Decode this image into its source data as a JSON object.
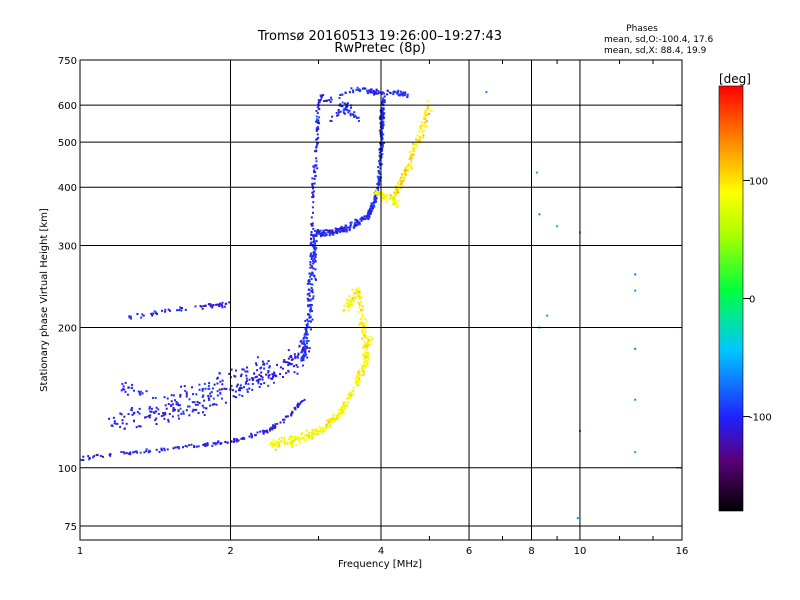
{
  "chart_data": {
    "type": "scatter",
    "title": "Tromsø 20160513 19:26:00–19:27:43",
    "subtitle": "RwPretec (8p)",
    "xlabel": "Frequency [MHz]",
    "ylabel": "Stationary phase Virtual Height [km]",
    "x_scale": "log",
    "y_scale": "log",
    "xlim": [
      1,
      16
    ],
    "ylim": [
      70,
      750
    ],
    "x_ticks": [
      "1",
      "2",
      "4",
      "6",
      "8",
      "10",
      "16"
    ],
    "y_ticks": [
      "75",
      "100",
      "200",
      "300",
      "400",
      "500",
      "600",
      "750"
    ],
    "grid": true,
    "phases": {
      "title": "Phases",
      "o_line": "mean, sd,O:-100.4, 17.6",
      "x_line": "mean, sd,X:  88.4, 19.9"
    },
    "colorbar": {
      "label": "[deg]",
      "range": [
        -180,
        180
      ],
      "ticks": [
        "100",
        "0",
        "-100"
      ],
      "tick_values": [
        100,
        0,
        -100
      ]
    },
    "traces": [
      {
        "kind": "o-f1-bottom",
        "points": [
          [
            1.0,
            105
          ],
          [
            1.1,
            106
          ],
          [
            1.3,
            108
          ],
          [
            1.5,
            110
          ],
          [
            1.8,
            112
          ],
          [
            2.0,
            114
          ],
          [
            2.2,
            117
          ],
          [
            2.4,
            121
          ],
          [
            2.6,
            128
          ],
          [
            2.8,
            140
          ]
        ],
        "spread": 0.015,
        "phase": -105,
        "count": 170
      },
      {
        "kind": "o-f1-upper",
        "points": [
          [
            1.15,
            125
          ],
          [
            1.4,
            130
          ],
          [
            1.7,
            135
          ],
          [
            2.0,
            145
          ],
          [
            2.3,
            155
          ],
          [
            2.6,
            165
          ],
          [
            2.85,
            180
          ]
        ],
        "spread": 0.08,
        "phase": -105,
        "count": 260
      },
      {
        "kind": "o-f1-mid",
        "points": [
          [
            1.2,
            150
          ],
          [
            1.5,
            140
          ],
          [
            1.8,
            150
          ],
          [
            2.1,
            160
          ],
          [
            2.4,
            170
          ]
        ],
        "spread": 0.06,
        "phase": -100,
        "count": 90
      },
      {
        "kind": "o-f2-cusp",
        "points": [
          [
            2.8,
            170
          ],
          [
            2.85,
            200
          ],
          [
            2.9,
            240
          ],
          [
            2.92,
            280
          ],
          [
            2.95,
            320
          ]
        ],
        "spread": 0.04,
        "phase": -98,
        "count": 180
      },
      {
        "kind": "o-f2",
        "points": [
          [
            2.95,
            320
          ],
          [
            3.2,
            320
          ],
          [
            3.5,
            330
          ],
          [
            3.8,
            350
          ],
          [
            3.95,
            400
          ],
          [
            4.0,
            480
          ],
          [
            4.02,
            560
          ],
          [
            4.05,
            630
          ]
        ],
        "spread": 0.025,
        "phase": -100,
        "count": 360
      },
      {
        "kind": "o-f2-column",
        "points": [
          [
            2.9,
            300
          ],
          [
            2.92,
            380
          ],
          [
            2.95,
            440
          ],
          [
            2.98,
            500
          ],
          [
            3.0,
            600
          ],
          [
            3.05,
            640
          ]
        ],
        "spread": 0.02,
        "phase": -102,
        "count": 90
      },
      {
        "kind": "o-top",
        "points": [
          [
            3.0,
            600
          ],
          [
            3.3,
            630
          ],
          [
            3.6,
            650
          ],
          [
            3.9,
            640
          ],
          [
            4.3,
            640
          ],
          [
            4.5,
            630
          ]
        ],
        "spread": 0.02,
        "phase": -98,
        "count": 90
      },
      {
        "kind": "o-f2-cluster",
        "points": [
          [
            3.2,
            560
          ],
          [
            3.4,
            600
          ],
          [
            3.6,
            560
          ]
        ],
        "spread": 0.04,
        "phase": -100,
        "count": 45
      },
      {
        "kind": "o-f1-trace",
        "points": [
          [
            1.25,
            210
          ],
          [
            1.5,
            218
          ],
          [
            1.8,
            222
          ],
          [
            2.0,
            225
          ]
        ],
        "spread": 0.015,
        "phase": -105,
        "count": 60
      },
      {
        "kind": "x-f1",
        "points": [
          [
            2.4,
            112
          ],
          [
            2.7,
            115
          ],
          [
            3.0,
            120
          ],
          [
            3.3,
            130
          ],
          [
            3.5,
            145
          ],
          [
            3.7,
            165
          ],
          [
            3.8,
            190
          ]
        ],
        "spread": 0.035,
        "phase": 90,
        "count": 260
      },
      {
        "kind": "x-f1-column",
        "points": [
          [
            3.4,
            220
          ],
          [
            3.6,
            240
          ],
          [
            3.7,
            200
          ],
          [
            3.75,
            170
          ]
        ],
        "spread": 0.04,
        "phase": 95,
        "count": 110
      },
      {
        "kind": "x-f2",
        "points": [
          [
            4.2,
            380
          ],
          [
            4.4,
            410
          ],
          [
            4.6,
            460
          ],
          [
            4.8,
            520
          ],
          [
            5.0,
            600
          ]
        ],
        "spread": 0.035,
        "phase": 100,
        "count": 130
      },
      {
        "kind": "x-f2-low",
        "points": [
          [
            3.9,
            390
          ],
          [
            4.1,
            380
          ],
          [
            4.3,
            370
          ]
        ],
        "spread": 0.03,
        "phase": 85,
        "count": 50
      },
      {
        "kind": "outliers",
        "points": [
          [
            8.3,
            200
          ],
          [
            8.6,
            212
          ],
          [
            9.0,
            330
          ],
          [
            10.0,
            320
          ],
          [
            12.9,
            180
          ],
          [
            12.9,
            240
          ],
          [
            12.9,
            260
          ],
          [
            12.9,
            140
          ],
          [
            12.9,
            108
          ],
          [
            10.0,
            120
          ],
          [
            9.9,
            78
          ],
          [
            6.5,
            640
          ],
          [
            8.3,
            350
          ],
          [
            8.2,
            430
          ]
        ],
        "spread": 0.01,
        "phase": -60,
        "count": 14
      }
    ]
  }
}
